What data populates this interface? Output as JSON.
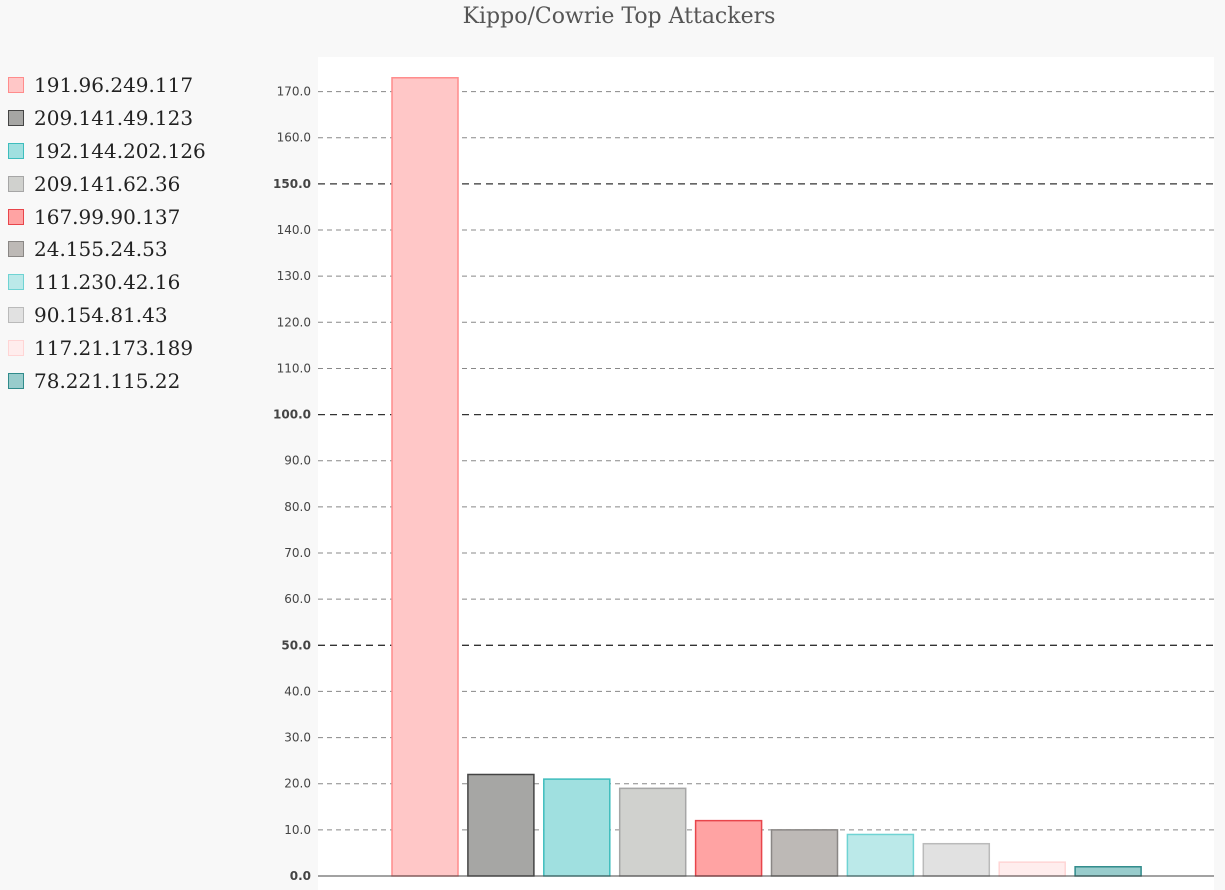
{
  "chart_data": {
    "type": "bar",
    "title": "Kippo/Cowrie Top Attackers",
    "xlabel": "",
    "ylabel": "",
    "ylim": [
      0,
      177.5
    ],
    "y_ticks": [
      "0.0",
      "10.0",
      "20.0",
      "30.0",
      "40.0",
      "50.0",
      "60.0",
      "70.0",
      "80.0",
      "90.0",
      "100.0",
      "110.0",
      "120.0",
      "130.0",
      "140.0",
      "150.0",
      "160.0",
      "170.0"
    ],
    "y_tick_step": 10,
    "y_major_every": 50,
    "grid": true,
    "legend_position": "left",
    "categories": [
      "191.96.249.117",
      "209.141.49.123",
      "192.144.202.126",
      "209.141.62.36",
      "167.99.90.137",
      "24.155.24.53",
      "111.230.42.16",
      "90.154.81.43",
      "117.21.173.189",
      "78.221.115.22"
    ],
    "values": [
      173,
      22,
      21,
      19,
      12,
      10,
      9,
      7,
      3,
      2
    ],
    "fill_colors": [
      "#ffc7c7",
      "#a6a6a4",
      "#a0e0e0",
      "#d0d1ce",
      "#ffa3a3",
      "#bdb9b6",
      "#bbe9e9",
      "#e1e1e1",
      "#ffeded",
      "#98cccc"
    ],
    "border_colors": [
      "#ff8c8c",
      "#444444",
      "#3ebdbd",
      "#a6a6a6",
      "#e8454b",
      "#8a8785",
      "#6fd3d3",
      "#bababa",
      "#ffd5d5",
      "#308b8b"
    ]
  }
}
